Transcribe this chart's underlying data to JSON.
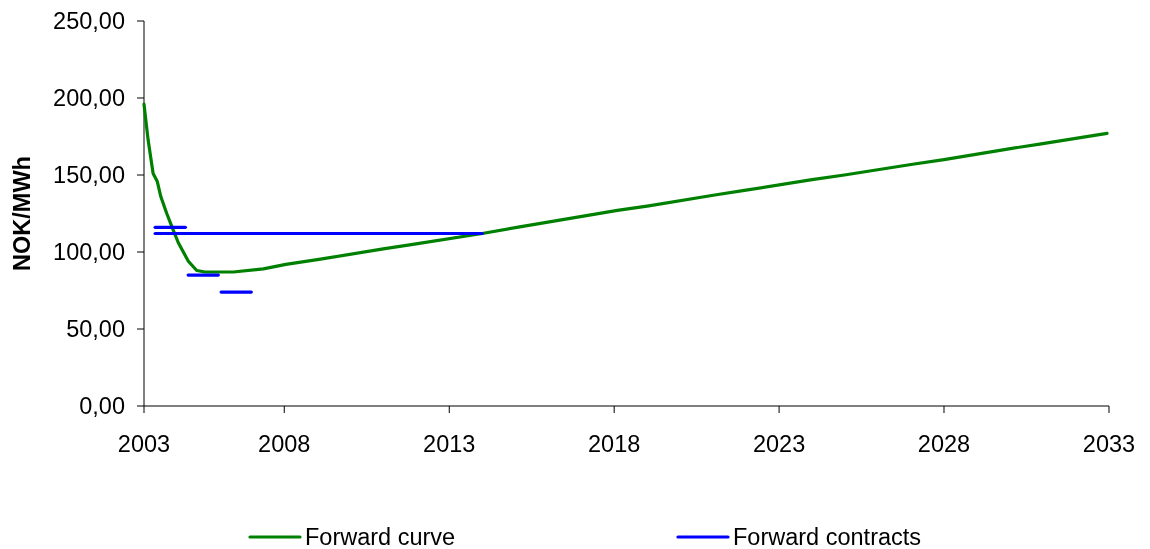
{
  "chart_data": {
    "type": "line",
    "ylabel": "NOK/MWh",
    "xlim": [
      "2003-10",
      "2033"
    ],
    "xticks": [
      {
        "value": "2003-10",
        "label": "2003"
      },
      "2008",
      "2013",
      "2018",
      "2023",
      "2028",
      "2033"
    ],
    "ylim": [
      0,
      250
    ],
    "yticks": [
      {
        "value": 0,
        "label": "0,00"
      },
      {
        "value": 50,
        "label": "50,00"
      },
      {
        "value": 100,
        "label": "100,00"
      },
      {
        "value": 150,
        "label": "150,00"
      },
      {
        "value": 200,
        "label": "200,00"
      },
      {
        "value": 250,
        "label": "250,00"
      }
    ],
    "legend": "bottom",
    "series": [
      {
        "name": "Forward curve",
        "color": "#008000",
        "x": [
          "2003-10",
          "2003-11-15",
          "2004-01-10",
          "2004-02-24",
          "2004-04-04",
          "2004-06-09",
          "2004-08-21",
          "2004-10-15",
          "2005-02-03",
          "2005-05-07",
          "2005-08-07",
          "2006-06-16",
          "2007-05-14",
          "2008-01-19",
          "2009-01",
          "2011-01",
          "2011-11-25",
          "2014-01",
          "2015-01-19",
          "2018-02-06",
          "2019-01-19",
          "2021-01-19",
          "2021-12-13",
          "2024-01",
          "2024-12-24",
          "2027-01-19",
          "2028-01",
          "2029-12-20",
          "2030-11-25",
          "2032-12-10"
        ],
        "values": [
          196,
          173,
          151,
          146,
          136,
          125,
          114,
          106,
          94,
          88,
          87,
          87,
          89,
          92,
          95,
          102,
          105,
          112,
          116,
          127,
          130,
          137,
          140,
          147,
          150,
          157,
          160,
          167,
          170,
          177
        ]
      },
      {
        "name": "Forward contracts",
        "color": "#0000ff",
        "x": [
          "2004-02",
          "2005-01"
        ],
        "values": [
          116,
          116
        ]
      },
      {
        "color": "#0000ff",
        "x": [
          "2004-02",
          "2014-01"
        ],
        "values": [
          112,
          112
        ]
      },
      {
        "color": "#0000ff",
        "x": [
          "2005-02",
          "2006-01"
        ],
        "values": [
          85,
          85
        ]
      },
      {
        "color": "#0000ff",
        "x": [
          "2006-02",
          "2007-01"
        ],
        "values": [
          74,
          74
        ]
      }
    ]
  }
}
